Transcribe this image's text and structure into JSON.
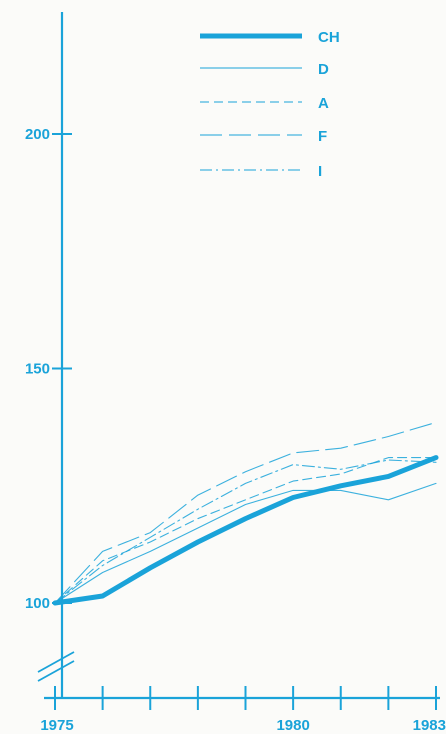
{
  "chart_data": {
    "type": "line",
    "x": [
      1975,
      1976,
      1977,
      1978,
      1979,
      1980,
      1981,
      1982,
      1983
    ],
    "xlim": [
      1975,
      1983
    ],
    "ylim": [
      90,
      225
    ],
    "y_ticks": [
      "100",
      "150",
      "200"
    ],
    "x_ticks": [
      "1975",
      "1980",
      "1983"
    ],
    "grid": false,
    "legend": "top-right",
    "color": "#1aa3d9",
    "series": [
      {
        "name": "CH",
        "style": "thick",
        "values": [
          100,
          101.5,
          107.5,
          113,
          118,
          122.5,
          125,
          127,
          131
        ]
      },
      {
        "name": "D",
        "style": "solid",
        "values": [
          100,
          106.5,
          111,
          116,
          121,
          124,
          124,
          122,
          125.5
        ]
      },
      {
        "name": "A",
        "style": "dashed",
        "values": [
          100,
          109,
          113,
          118,
          122,
          126,
          127.5,
          131,
          131
        ]
      },
      {
        "name": "F",
        "style": "long-dash",
        "values": [
          100,
          111,
          115,
          123,
          128,
          132,
          133,
          135.5,
          138.5
        ]
      },
      {
        "name": "I",
        "style": "dash-dot",
        "values": [
          100,
          108,
          114,
          120,
          125.5,
          129.5,
          128.5,
          130.5,
          130
        ]
      }
    ]
  }
}
